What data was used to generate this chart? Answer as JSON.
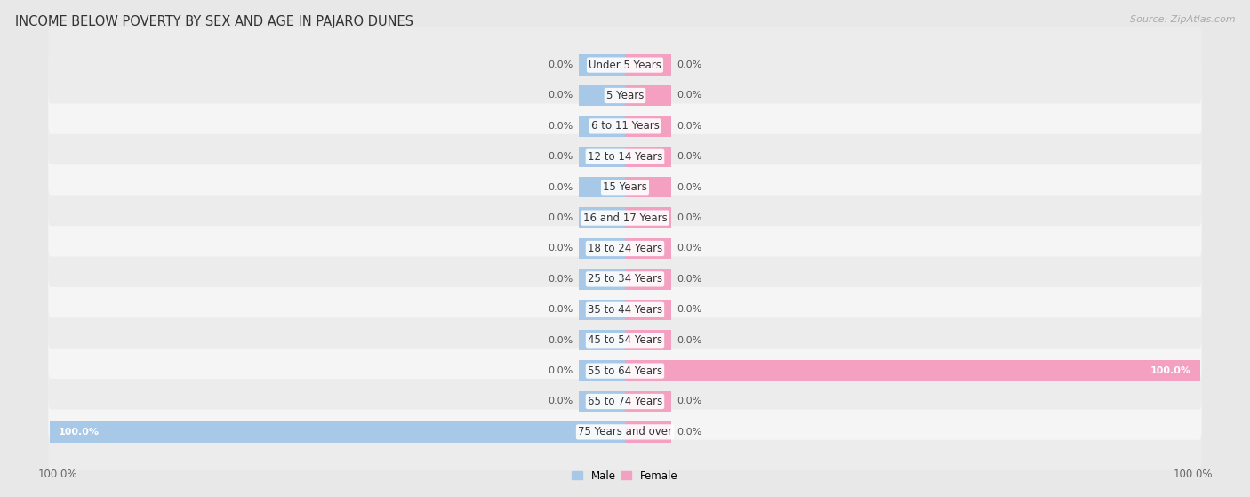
{
  "title": "INCOME BELOW POVERTY BY SEX AND AGE IN PAJARO DUNES",
  "source": "Source: ZipAtlas.com",
  "categories": [
    "Under 5 Years",
    "5 Years",
    "6 to 11 Years",
    "12 to 14 Years",
    "15 Years",
    "16 and 17 Years",
    "18 to 24 Years",
    "25 to 34 Years",
    "35 to 44 Years",
    "45 to 54 Years",
    "55 to 64 Years",
    "65 to 74 Years",
    "75 Years and over"
  ],
  "male_values": [
    0.0,
    0.0,
    0.0,
    0.0,
    0.0,
    0.0,
    0.0,
    0.0,
    0.0,
    0.0,
    0.0,
    0.0,
    100.0
  ],
  "female_values": [
    0.0,
    0.0,
    0.0,
    0.0,
    0.0,
    0.0,
    0.0,
    0.0,
    0.0,
    0.0,
    100.0,
    0.0,
    0.0
  ],
  "male_color": "#a8c8e8",
  "female_color": "#f4a0c0",
  "male_label": "Male",
  "female_label": "Female",
  "bg_color": "#e8e8e8",
  "row_color_light": "#f5f5f5",
  "row_color_dark": "#ececec",
  "axis_limit": 100.0,
  "stub_size": 8.0,
  "label_fontsize": 8.5,
  "title_fontsize": 10.5,
  "source_fontsize": 8.0,
  "value_fontsize": 8.0,
  "category_fontsize": 8.5
}
